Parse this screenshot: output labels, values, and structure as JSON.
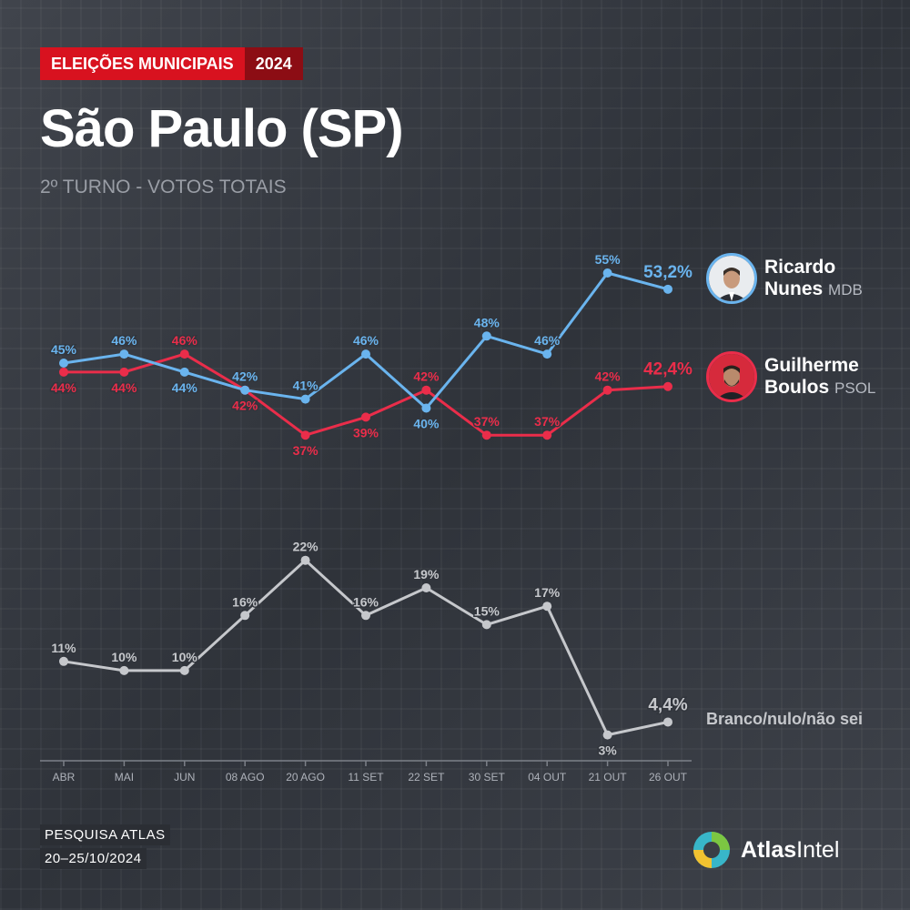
{
  "header": {
    "badge": "ELEIÇÕES MUNICIPAIS",
    "year": "2024",
    "title": "São Paulo (SP)",
    "subtitle": "2º TURNO - VOTOS TOTAIS"
  },
  "candidates": [
    {
      "first": "Ricardo",
      "last": "Nunes",
      "party": "MDB",
      "color": "#6ab4ee"
    },
    {
      "first": "Guilherme",
      "last": "Boulos",
      "party": "PSOL",
      "color": "#ea2d4a"
    }
  ],
  "chart_data": {
    "type": "line",
    "categories": [
      "ABR",
      "MAI",
      "JUN",
      "08 AGO",
      "20 AGO",
      "11 SET",
      "22 SET",
      "30 SET",
      "04 OUT",
      "21 OUT",
      "26 OUT"
    ],
    "series": [
      {
        "name": "Ricardo Nunes MDB",
        "color": "#6ab4ee",
        "values": [
          45,
          46,
          44,
          42,
          41,
          46,
          40,
          48,
          46,
          55,
          53.2
        ],
        "labels": [
          "45%",
          "46%",
          "44%",
          "42%",
          "41%",
          "46%",
          "40%",
          "48%",
          "46%",
          "55%",
          "53,2%"
        ]
      },
      {
        "name": "Guilherme Boulos PSOL",
        "color": "#ea2d4a",
        "values": [
          44,
          44,
          46,
          42,
          37,
          39,
          42,
          37,
          37,
          42,
          42.4
        ],
        "labels": [
          "44%",
          "44%",
          "46%",
          "42%",
          "37%",
          "39%",
          "42%",
          "37%",
          "37%",
          "42%",
          "42,4%"
        ]
      },
      {
        "name": "Branco/nulo/não sei",
        "color": "#c6c8cc",
        "values": [
          11,
          10,
          10,
          16,
          22,
          16,
          19,
          15,
          17,
          3,
          4.4
        ],
        "labels": [
          "11%",
          "10%",
          "10%",
          "16%",
          "22%",
          "16%",
          "19%",
          "15%",
          "17%",
          "3%",
          "4,4%"
        ]
      }
    ]
  },
  "footer": {
    "source": "PESQUISA ATLAS",
    "dates": "20–25/10/2024",
    "logo_bold": "Atlas",
    "logo_rest": "Intel"
  }
}
